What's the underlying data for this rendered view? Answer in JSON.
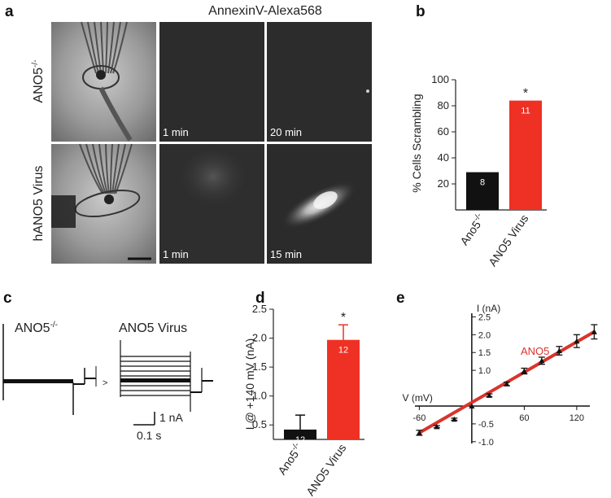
{
  "panel_labels": {
    "a": "a",
    "b": "b",
    "c": "c",
    "d": "d",
    "e": "e"
  },
  "panel_a": {
    "title": "AnnexinV-Alexa568",
    "row_labels": [
      "ANO5-/-",
      "hANO5 Virus"
    ],
    "row_labels_parts": [
      {
        "base": "ANO5",
        "sup": "-/-"
      },
      {
        "base": "hANO5 Virus",
        "sup": ""
      }
    ],
    "time_labels": [
      [
        "1 min",
        "20 min"
      ],
      [
        "1 min",
        "15 min"
      ]
    ]
  },
  "panel_c": {
    "label_left": {
      "base": "ANO5",
      "sup": "-/-"
    },
    "label_right": "ANO5 Virus",
    "scale_current": "1 nA",
    "scale_time": "0.1 s",
    "arrow": ">"
  },
  "chart_data": [
    {
      "panel": "b",
      "type": "bar",
      "categories": [
        "Ano5-/-",
        "ANO5 Virus"
      ],
      "category_parts": [
        {
          "base": "Ano5",
          "sup": "-/-"
        },
        {
          "base": "ANO5 Virus",
          "sup": ""
        }
      ],
      "values": [
        29,
        84
      ],
      "bar_labels": [
        "8",
        "11"
      ],
      "colors": [
        "#111111",
        "#ee3124"
      ],
      "significance": [
        "",
        "*"
      ],
      "ylabel": "% Cells Scrambling",
      "ylim": [
        0,
        100
      ],
      "yticks": [
        20,
        40,
        60,
        80,
        100
      ]
    },
    {
      "panel": "d",
      "type": "bar",
      "categories": [
        "Ano5-/-",
        "ANO5 Virus"
      ],
      "category_parts": [
        {
          "base": "Ano5",
          "sup": "-/-"
        },
        {
          "base": "ANO5 Virus",
          "sup": ""
        }
      ],
      "values": [
        0.42,
        1.97
      ],
      "errors": [
        0.25,
        0.26
      ],
      "bar_labels": [
        "12",
        "12"
      ],
      "colors": [
        "#111111",
        "#ee3124"
      ],
      "significance": [
        "",
        "*"
      ],
      "ylabel": "I @ +140 mV (nA)",
      "ylim": [
        0.25,
        2.5
      ],
      "yticks": [
        0.5,
        1.0,
        1.5,
        2.0,
        2.5
      ],
      "ytick_labels": [
        "0.5",
        "1.0",
        "1.5",
        "2.0",
        "2.5"
      ]
    },
    {
      "panel": "e",
      "type": "line",
      "xlabel": "V (mV)",
      "ylabel": "I (nA)",
      "xlim": [
        -65,
        135
      ],
      "ylim": [
        -1.05,
        2.6
      ],
      "xticks": [
        -60,
        60,
        120
      ],
      "xtick_labels": [
        "-60",
        "60",
        "120"
      ],
      "yticks": [
        -1.0,
        -0.5,
        1.0,
        1.5,
        2.0,
        2.5
      ],
      "ytick_labels": [
        "-1.0",
        "-0.5",
        "1.0",
        "1.5",
        "2.0",
        "2.5"
      ],
      "series": [
        {
          "name": "ANO5",
          "color": "#d9342b",
          "x": [
            -60,
            -40,
            -20,
            0,
            20,
            40,
            60,
            80,
            100,
            120,
            140
          ],
          "y": [
            -0.75,
            -0.58,
            -0.37,
            0.0,
            0.3,
            0.62,
            0.98,
            1.27,
            1.55,
            1.82,
            2.08
          ],
          "errors": [
            0.07,
            0.03,
            0.03,
            0.02,
            0.04,
            0.05,
            0.08,
            0.1,
            0.12,
            0.18,
            0.2
          ]
        }
      ]
    }
  ]
}
